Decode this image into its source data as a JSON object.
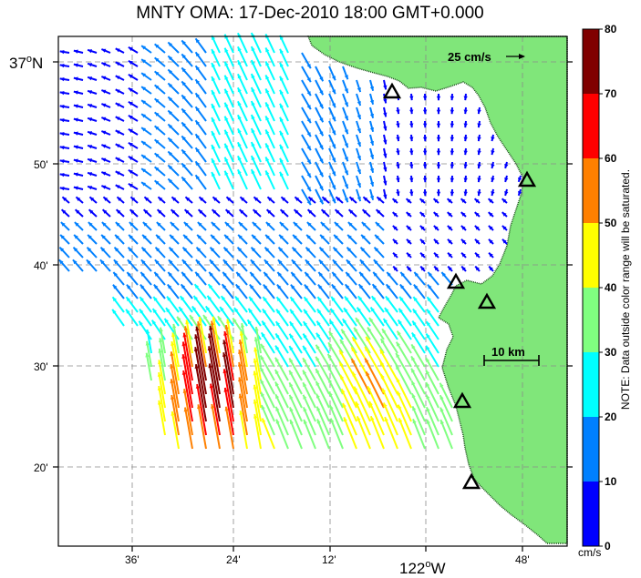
{
  "map": {
    "title": "MNTY OMA: 17-Dec-2010 18:00 GMT+0.000",
    "scale_arrow_label": "25 cm/s",
    "scale_bar_label": "10 km",
    "lat_labels": {
      "top": "37",
      "top_suffix": "N",
      "l50": "50'",
      "l40": "40'",
      "l30": "30'",
      "l20": "20'"
    },
    "lon_labels": {
      "l36": "36'",
      "l24": "24'",
      "l12": "12'",
      "main": "122",
      "main_suffix": "W",
      "l48": "48'"
    },
    "degree_symbol": "o"
  },
  "colorbar": {
    "ticks": [
      "80",
      "70",
      "60",
      "50",
      "40",
      "30",
      "20",
      "10",
      "0"
    ],
    "unit": "cm/s",
    "note": "NOTE: Data outside color range will be saturated.",
    "colors": [
      "#0000ff",
      "#0080ff",
      "#00ffff",
      "#80ff80",
      "#ffff00",
      "#ff8000",
      "#ff0000",
      "#800000"
    ]
  },
  "colors": {
    "land": "#80e67a",
    "coast_stipple": "#1b4d1b",
    "grid": "#8a8a8a"
  },
  "stations": [
    {
      "name": "station-1"
    },
    {
      "name": "station-2"
    },
    {
      "name": "station-3"
    },
    {
      "name": "station-4"
    },
    {
      "name": "station-5"
    },
    {
      "name": "station-6"
    }
  ]
}
